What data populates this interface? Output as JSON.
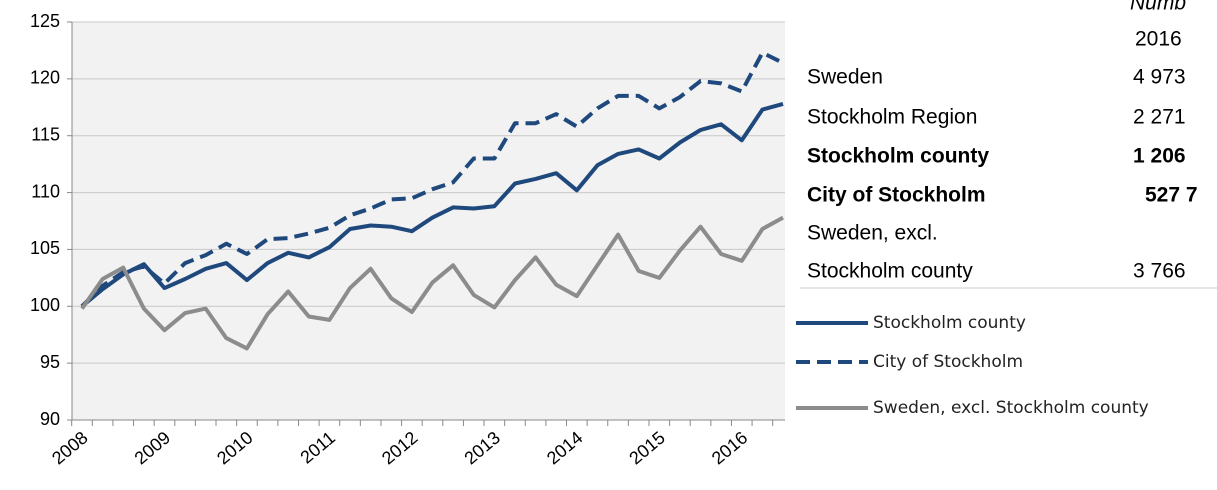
{
  "chart_data": {
    "type": "line",
    "categories": [
      "2008",
      null,
      null,
      null,
      "2009",
      null,
      null,
      null,
      "2010",
      null,
      null,
      null,
      "2011",
      null,
      null,
      null,
      "2012",
      null,
      null,
      null,
      "2013",
      null,
      null,
      null,
      "2014",
      null,
      null,
      null,
      "2015",
      null,
      null,
      null,
      "2016",
      null,
      null
    ],
    "series": [
      {
        "name": "Stockholm county",
        "color": "#1f497d",
        "dash": false,
        "values": [
          100,
          101.5,
          102.8,
          103.7,
          101.6,
          102.4,
          103.3,
          103.8,
          102.3,
          103.8,
          104.7,
          104.3,
          105.2,
          106.8,
          107.1,
          107.0,
          106.6,
          107.8,
          108.7,
          108.6,
          108.8,
          110.8,
          111.2,
          111.7,
          110.2,
          112.4,
          113.4,
          113.8,
          113.0,
          114.4,
          115.5,
          116.0,
          114.6,
          117.3,
          117.8
        ]
      },
      {
        "name": "City of Stockholm",
        "color": "#1f497d",
        "dash": true,
        "values": [
          100,
          101.8,
          103.0,
          103.5,
          102.0,
          103.8,
          104.5,
          105.5,
          104.6,
          105.9,
          106.0,
          106.4,
          106.9,
          108.0,
          108.6,
          109.4,
          109.5,
          110.3,
          110.9,
          113.0,
          113.0,
          116.1,
          116.1,
          116.9,
          115.8,
          117.4,
          118.5,
          118.5,
          117.4,
          118.4,
          119.8,
          119.6,
          118.9,
          122.3,
          121.4
        ]
      },
      {
        "name": "Sweden, excl. Stockholm county",
        "color": "#8c8c8c",
        "dash": false,
        "values": [
          99.8,
          102.4,
          103.4,
          99.8,
          97.9,
          99.4,
          99.8,
          97.2,
          96.3,
          99.3,
          101.3,
          99.1,
          98.8,
          101.6,
          103.3,
          100.7,
          99.5,
          102.1,
          103.6,
          101.0,
          99.9,
          102.3,
          104.3,
          101.9,
          100.9,
          103.6,
          106.3,
          103.1,
          102.5,
          104.9,
          107.0,
          104.6,
          104.0,
          106.8,
          107.8
        ]
      }
    ],
    "ylim": [
      90,
      125
    ],
    "yticks": [
      90,
      95,
      100,
      105,
      110,
      115,
      120,
      125
    ],
    "grid": true
  },
  "table": {
    "header": "Numb",
    "column": "2016",
    "rows": [
      {
        "label": "Sweden",
        "value": "4 973",
        "bold": false
      },
      {
        "label": "Stockholm Region",
        "value": "2 271",
        "bold": false
      },
      {
        "label": "Stockholm county",
        "value": "1 206",
        "bold": true
      },
      {
        "label": "City of Stockholm",
        "value": "527 7",
        "bold": true
      },
      {
        "label": "Sweden, excl.",
        "value": null,
        "bold": false
      },
      {
        "label": "Stockholm county",
        "value": "3 766",
        "bold": false
      }
    ]
  }
}
